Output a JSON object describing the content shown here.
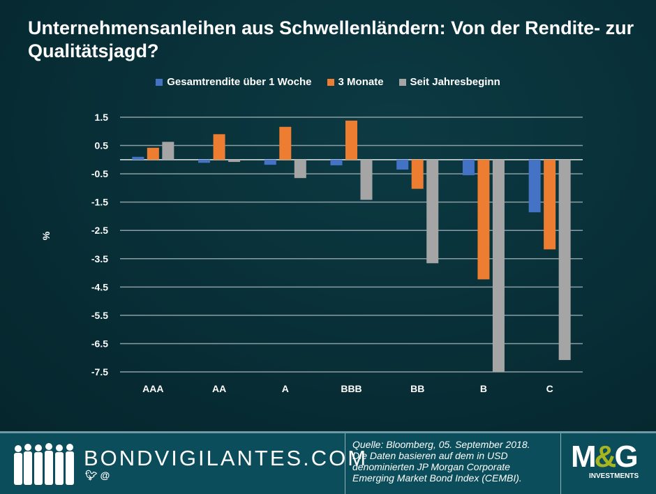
{
  "title": "Unternehmensanleihen aus Schwellenländern: Von der Rendite- zur Qualitätsjagd?",
  "chart_data": {
    "type": "bar",
    "title": "Unternehmensanleihen aus Schwellenländern: Von der Rendite- zur Qualitätsjagd?",
    "categories": [
      "AAA",
      "AA",
      "A",
      "BBB",
      "BB",
      "B",
      "C"
    ],
    "series": [
      {
        "name": "Gesamtrendite über 1 Woche",
        "color": "#4472c4",
        "values": [
          0.1,
          -0.11,
          -0.18,
          -0.2,
          -0.35,
          -0.55,
          -1.86
        ]
      },
      {
        "name": "3 Monate",
        "color": "#ed7d31",
        "values": [
          0.42,
          0.9,
          1.16,
          1.38,
          -1.03,
          -4.23,
          -3.17
        ]
      },
      {
        "name": "Seit Jahresbeginn",
        "color": "#a5a5a5",
        "values": [
          0.63,
          -0.08,
          -0.65,
          -1.42,
          -3.66,
          -7.5,
          -7.08
        ]
      }
    ],
    "ylabel": "%",
    "xlabel": "",
    "ylim": [
      -7.5,
      1.5
    ],
    "yticks": [
      "1.5",
      "0.5",
      "-0.5",
      "-1.5",
      "-2.5",
      "-3.5",
      "-4.5",
      "-5.5",
      "-6.5",
      "-7.5"
    ],
    "grid": true,
    "legend_position": "top"
  },
  "footer": {
    "brand": "BONDVIGILANTES.COM",
    "social": "@",
    "source_lines": [
      "Quelle: Bloomberg, 05. September 2018.",
      "Die Daten basieren auf dem in USD",
      "denominierten JP Morgan Corporate",
      "Emerging Market Bond Index (CEMBI)."
    ],
    "logo": "M&G",
    "logo_sub": "INVESTMENTS"
  }
}
